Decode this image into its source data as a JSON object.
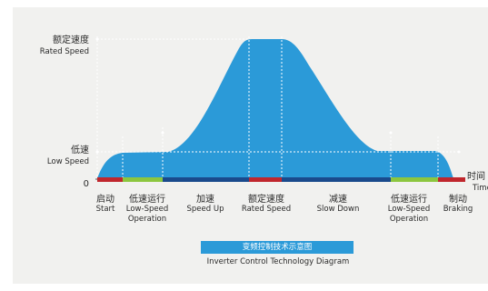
{
  "diagram": {
    "y_axis": {
      "rated_speed_cn": "额定速度",
      "rated_speed_en": "Rated Speed",
      "low_speed_cn": "低速",
      "low_speed_en": "Low Speed",
      "zero": "0"
    },
    "time_axis": {
      "cn": "时间",
      "en": "Time"
    },
    "phases": [
      {
        "cn": "启动",
        "en": "Start",
        "color": "#c0272d"
      },
      {
        "cn": "低速运行",
        "en": "Low-Speed",
        "en2": "Operation",
        "color": "#8cc63f"
      },
      {
        "cn": "加速",
        "en": "Speed Up",
        "color": "#1a4a8c"
      },
      {
        "cn": "额定速度",
        "en": "Rated Speed",
        "color": "#c0272d"
      },
      {
        "cn": "减速",
        "en": "Slow Down",
        "color": "#1a4a8c"
      },
      {
        "cn": "低速运行",
        "en": "Low-Speed",
        "en2": "Operation",
        "color": "#8cc63f"
      },
      {
        "cn": "制动",
        "en": "Braking",
        "color": "#c0272d"
      }
    ],
    "title_cn": "变频控制技术示意图",
    "title_en": "Inverter Control Technology Diagram",
    "fill_color": "#2b9ad8"
  }
}
